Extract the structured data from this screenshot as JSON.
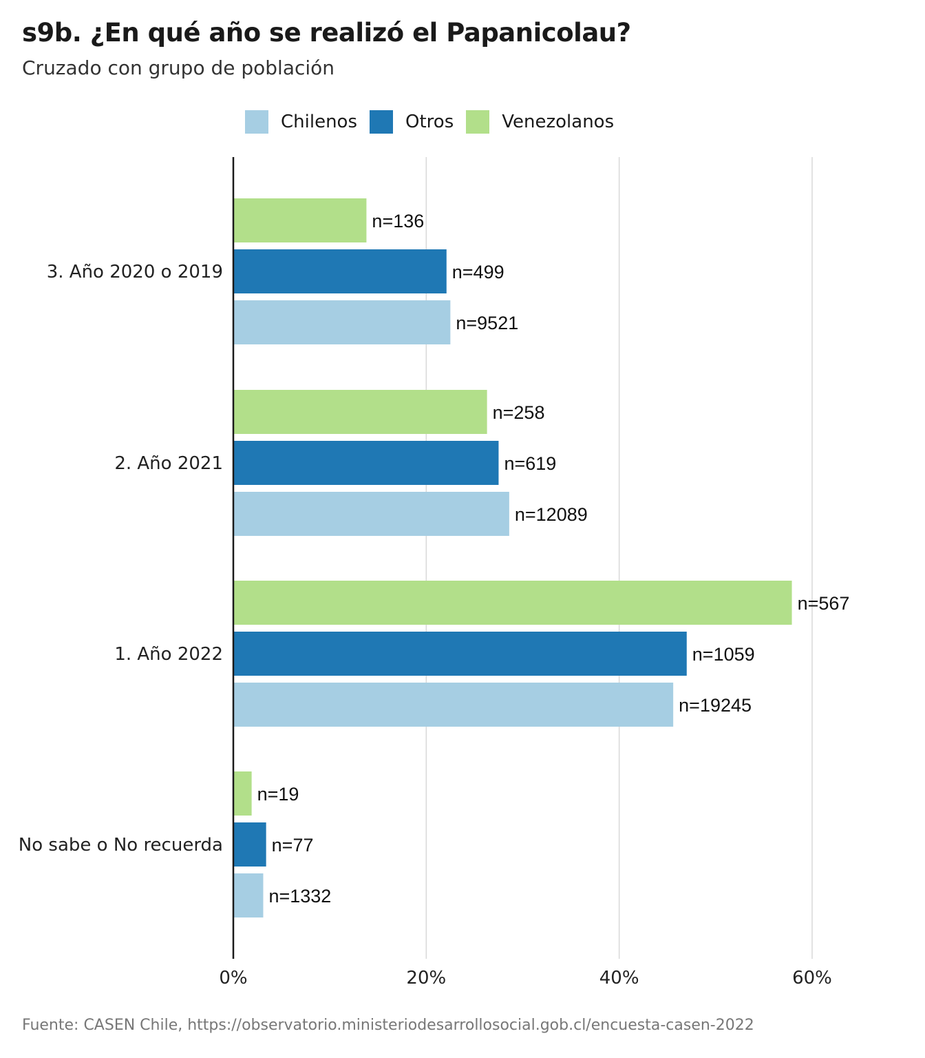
{
  "chart_data": {
    "type": "bar",
    "orientation": "horizontal",
    "title": "s9b. ¿En qué año se realizó el Papanicolau?",
    "subtitle": "Cruzado con grupo de población",
    "caption": "Fuente: CASEN Chile, https://observatorio.ministeriodesarrollosocial.gob.cl/encuesta-casen-2022",
    "categories": [
      "3. Año 2020 o 2019",
      "2. Año 2021",
      "1. Año 2022",
      "No sabe o No recuerda"
    ],
    "legend_position": "top",
    "grid": true,
    "xlim": [
      0,
      60
    ],
    "x_ticks": [
      0,
      20,
      40,
      60
    ],
    "x_tick_labels": [
      "0%",
      "20%",
      "40%",
      "60%"
    ],
    "series": [
      {
        "name": "Venezolanos",
        "color": "#b2df8a",
        "values": [
          13.8,
          26.3,
          57.9,
          1.9
        ],
        "labels": [
          "n=136",
          "n=258",
          "n=567",
          "n=19"
        ]
      },
      {
        "name": "Otros",
        "color": "#1f78b4",
        "values": [
          22.1,
          27.5,
          47.0,
          3.4
        ],
        "labels": [
          "n=499",
          "n=619",
          "n=1059",
          "n=77"
        ]
      },
      {
        "name": "Chilenos",
        "color": "#a6cee3",
        "values": [
          22.5,
          28.6,
          45.6,
          3.1
        ],
        "labels": [
          "n=9521",
          "n=12089",
          "n=19245",
          "n=1332"
        ]
      }
    ],
    "legend": [
      {
        "name": "Chilenos",
        "color": "#a6cee3"
      },
      {
        "name": "Otros",
        "color": "#1f78b4"
      },
      {
        "name": "Venezolanos",
        "color": "#b2df8a"
      }
    ]
  }
}
